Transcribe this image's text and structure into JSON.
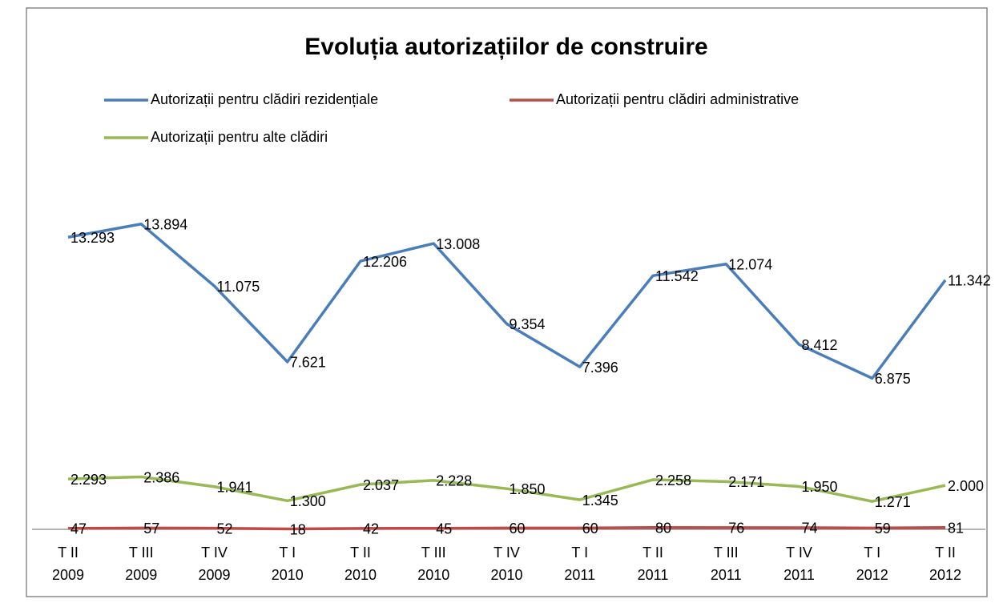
{
  "chart_data": {
    "type": "line",
    "title": "Evoluția autorizațiilor de construire",
    "categories": [
      [
        "T II",
        "2009"
      ],
      [
        "T III",
        "2009"
      ],
      [
        "T IV",
        "2009"
      ],
      [
        "T I",
        "2010"
      ],
      [
        "T II",
        "2010"
      ],
      [
        "T III",
        "2010"
      ],
      [
        "T IV",
        "2010"
      ],
      [
        "T I",
        "2011"
      ],
      [
        "T II",
        "2011"
      ],
      [
        "T III",
        "2011"
      ],
      [
        "T IV",
        "2011"
      ],
      [
        "T I",
        "2012"
      ],
      [
        "T II",
        "2012"
      ]
    ],
    "series": [
      {
        "name": "Autorizații pentru clădiri rezidențiale",
        "color": "#4a7ebb",
        "values": [
          13293,
          13894,
          11075,
          7621,
          12206,
          13008,
          9354,
          7396,
          11542,
          12074,
          8412,
          6875,
          11342
        ],
        "value_labels": [
          "13.293",
          "13.894",
          "11.075",
          "7.621",
          "12.206",
          "13.008",
          "9.354",
          "7.396",
          "11.542",
          "12.074",
          "8.412",
          "6.875",
          "11.342"
        ]
      },
      {
        "name": "Autorizații pentru clădiri administrative",
        "color": "#be4b48",
        "values": [
          47,
          57,
          52,
          18,
          42,
          45,
          60,
          60,
          80,
          76,
          74,
          59,
          81
        ]
      },
      {
        "name": "Autorizații pentru alte clădiri",
        "color": "#98b954",
        "values": [
          2293,
          2386,
          1941,
          1300,
          2037,
          2228,
          1850,
          1345,
          2258,
          2171,
          1950,
          1271,
          2000
        ],
        "value_labels": [
          "2.293",
          "2.386",
          "1.941",
          "1.300",
          "2.037",
          "2.228",
          "1.850",
          "1.345",
          "2.258",
          "2.171",
          "1.950",
          "1.271",
          "2.000"
        ]
      }
    ],
    "ylim": [
      0,
      16000
    ],
    "legend": "top"
  }
}
